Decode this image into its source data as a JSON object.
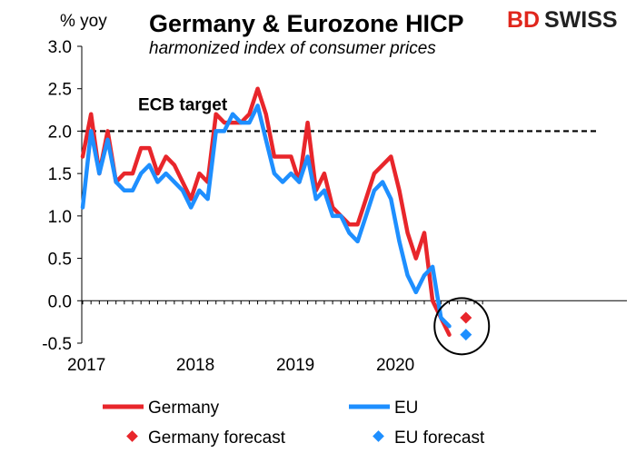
{
  "chart_data": {
    "type": "line",
    "title": "Germany & Eurozone HICP",
    "subtitle": "harmonized index of consumer prices",
    "ylabel": "% yoy",
    "xlabel": "",
    "ylim": [
      -0.5,
      3.0
    ],
    "yticks": [
      "3.0",
      "2.5",
      "2.0",
      "1.5",
      "1.0",
      "0.5",
      "0.0",
      "-0.5"
    ],
    "xticks": [
      "2017",
      "2018",
      "2019",
      "2020"
    ],
    "x_start": "2017-01",
    "reference_line": {
      "value": 2.0,
      "label": "ECB target",
      "style": "dashed",
      "color": "#000000"
    },
    "grid": false,
    "legend_position": "bottom",
    "series": [
      {
        "name": "Germany",
        "kind": "line",
        "color": "#e8262b",
        "values": [
          1.7,
          2.2,
          1.5,
          2.0,
          1.4,
          1.5,
          1.5,
          1.8,
          1.8,
          1.5,
          1.7,
          1.6,
          1.4,
          1.2,
          1.5,
          1.4,
          2.2,
          2.1,
          2.1,
          2.1,
          2.2,
          2.5,
          2.2,
          1.7,
          1.7,
          1.7,
          1.4,
          2.1,
          1.3,
          1.5,
          1.1,
          1.0,
          0.9,
          0.9,
          1.2,
          1.5,
          1.6,
          1.7,
          1.3,
          0.8,
          0.5,
          0.8,
          0.0,
          -0.2,
          -0.4
        ],
        "notes": "Germany monthly HICP % yoy"
      },
      {
        "name": "EU",
        "kind": "line",
        "color": "#1e8fff",
        "values": [
          1.1,
          2.0,
          1.5,
          1.9,
          1.4,
          1.3,
          1.3,
          1.5,
          1.6,
          1.4,
          1.5,
          1.4,
          1.3,
          1.1,
          1.3,
          1.2,
          2.0,
          2.0,
          2.2,
          2.1,
          2.1,
          2.3,
          1.9,
          1.5,
          1.4,
          1.5,
          1.4,
          1.7,
          1.2,
          1.3,
          1.0,
          1.0,
          0.8,
          0.7,
          1.0,
          1.3,
          1.4,
          1.2,
          0.7,
          0.3,
          0.1,
          0.3,
          0.4,
          -0.2,
          -0.3
        ]
      },
      {
        "name": "Germany forecast",
        "kind": "marker",
        "marker": "diamond",
        "color": "#e8262b",
        "points": [
          {
            "index": 46,
            "value": -0.2
          }
        ]
      },
      {
        "name": "EU forecast",
        "kind": "marker",
        "marker": "diamond",
        "color": "#1e8fff",
        "points": [
          {
            "index": 46,
            "value": -0.4
          }
        ]
      }
    ],
    "annotations": [
      {
        "type": "circle",
        "description": "circle around forecast points"
      }
    ]
  },
  "logo": {
    "part1": "BD",
    "part2": "SWISS",
    "accent_color": "#e0261c"
  }
}
